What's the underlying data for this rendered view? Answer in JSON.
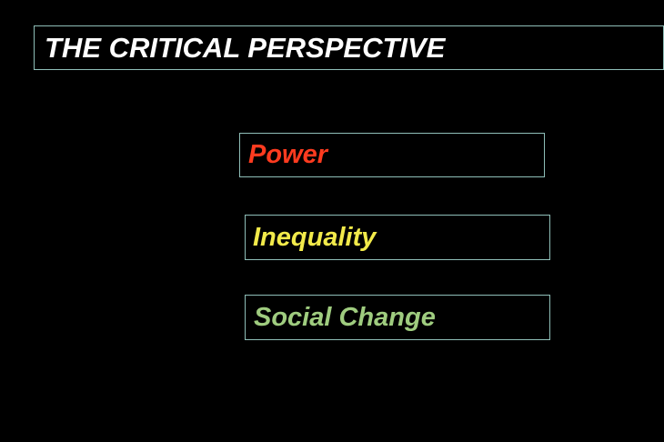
{
  "slide": {
    "title": "THE CRITICAL PERSPECTIVE",
    "terms": [
      {
        "label": "Power",
        "color": "#ff3b1f"
      },
      {
        "label": "Inequality",
        "color": "#f2ea4a"
      },
      {
        "label": "Social Change",
        "color": "#9fcc7f"
      }
    ],
    "colors": {
      "background": "#000000",
      "title_text": "#ffffff",
      "box_border": "#8fbfb8"
    }
  }
}
